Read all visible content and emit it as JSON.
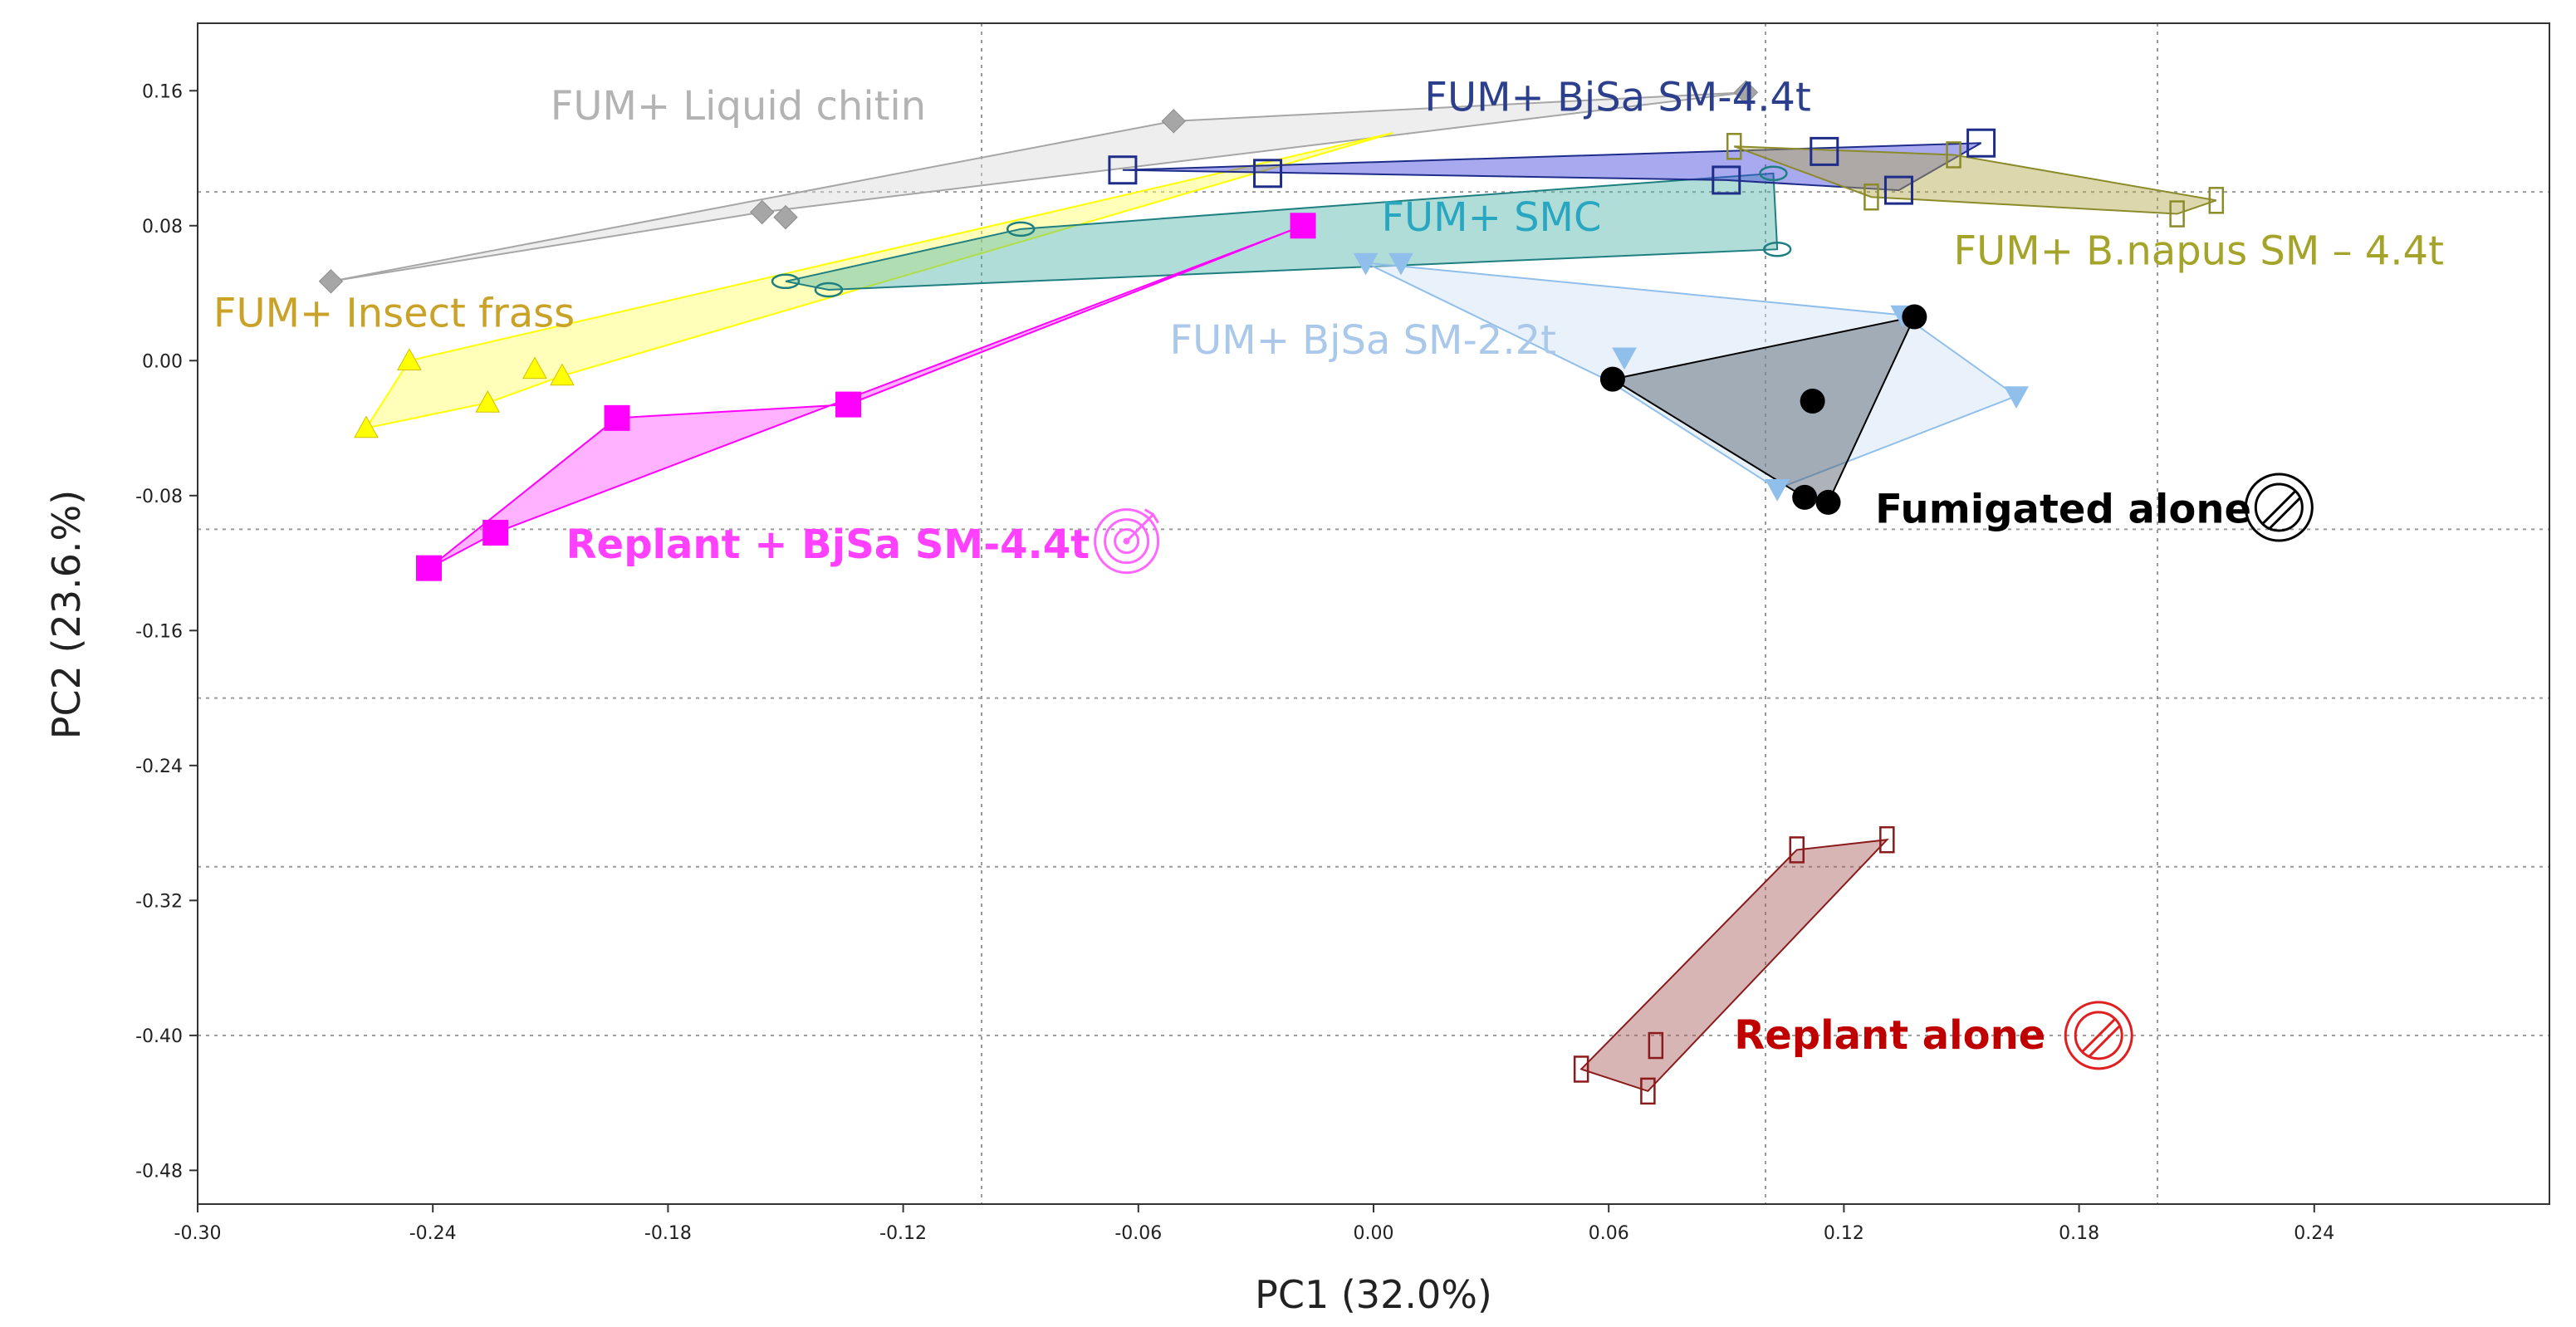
{
  "chart_data": {
    "type": "scatter",
    "title": "",
    "xlabel": "PC1 (32.0%)",
    "ylabel": "PC2 (23.6.%)",
    "xlim": [
      -0.3,
      0.3
    ],
    "ylim": [
      -0.5,
      0.2
    ],
    "xticks": [
      "-0.30",
      "-0.24",
      "-0.18",
      "-0.12",
      "-0.06",
      "0.00",
      "0.06",
      "0.12",
      "0.18",
      "0.24"
    ],
    "xtick_values": [
      -0.3,
      -0.24,
      -0.18,
      -0.12,
      -0.06,
      0.0,
      0.06,
      0.12,
      0.18,
      0.24
    ],
    "yticks": [
      "0.16",
      "0.08",
      "0.00",
      "-0.08",
      "-0.16",
      "-0.24",
      "-0.32",
      "-0.40",
      "-0.48"
    ],
    "ytick_values": [
      0.16,
      0.08,
      0.0,
      -0.08,
      -0.16,
      -0.24,
      -0.32,
      -0.4,
      -0.48
    ],
    "vertical_gridlines": [
      -0.1,
      0.1,
      0.2
    ],
    "horizontal_gridlines": [
      0.1,
      -0.1,
      -0.2,
      -0.3,
      -0.4
    ],
    "series": [
      {
        "name": "FUM+ Liquid chitin",
        "label": "FUM+ Liquid chitin",
        "marker": "diamond",
        "color": "#a6a6a6",
        "fill": "#d9d9d9",
        "label_color": "#b3b3b3",
        "bold": false,
        "label_pos": [
          -0.21,
          0.143
        ],
        "hull": [
          [
            -0.266,
            0.047
          ],
          [
            -0.051,
            0.142
          ],
          [
            0.095,
            0.159
          ],
          [
            -0.156,
            0.088
          ]
        ],
        "points": [
          [
            -0.266,
            0.047
          ],
          [
            -0.156,
            0.088
          ],
          [
            -0.15,
            0.085
          ],
          [
            -0.051,
            0.142
          ],
          [
            0.095,
            0.159
          ]
        ]
      },
      {
        "name": "FUM+ Insect frass",
        "label": "FUM+ Insect frass",
        "marker": "triangle-up",
        "color": "#ffff00",
        "fill": "#ffff66",
        "label_color": "#c9a227",
        "bold": false,
        "label_pos": [
          -0.296,
          0.02
        ],
        "hull": [
          [
            -0.257,
            -0.04
          ],
          [
            -0.246,
            0.0
          ],
          [
            0.005,
            0.135
          ],
          [
            -0.207,
            -0.009
          ],
          [
            -0.226,
            -0.025
          ]
        ],
        "points": [
          [
            -0.257,
            -0.04
          ],
          [
            -0.246,
            0.0
          ],
          [
            -0.226,
            -0.025
          ],
          [
            -0.214,
            -0.005
          ],
          [
            -0.207,
            -0.009
          ]
        ]
      },
      {
        "name": "FUM+ SMC",
        "label": "FUM+ SMC",
        "marker": "ellipse",
        "color": "#1f7f80",
        "fill": "#4fb3a9",
        "label_color": "#2aa7c0",
        "bold": false,
        "label_pos": [
          0.002,
          0.077
        ],
        "hull": [
          [
            -0.15,
            0.047
          ],
          [
            -0.09,
            0.078
          ],
          [
            0.102,
            0.111
          ],
          [
            0.103,
            0.066
          ],
          [
            -0.139,
            0.042
          ]
        ],
        "points": [
          [
            -0.15,
            0.047
          ],
          [
            -0.139,
            0.042
          ],
          [
            -0.09,
            0.078
          ],
          [
            0.102,
            0.111
          ],
          [
            0.103,
            0.066
          ]
        ]
      },
      {
        "name": "FUM+ BjSa SM-4.4t",
        "label": "FUM+ BjSa SM-4.4t",
        "marker": "square-open",
        "color": "#1f2d8a",
        "fill": "#4040dd",
        "label_color": "#2b3f8c",
        "bold": false,
        "label_pos": [
          0.013,
          0.148
        ],
        "hull": [
          [
            -0.064,
            0.113
          ],
          [
            0.155,
            0.129
          ],
          [
            0.134,
            0.101
          ],
          [
            0.09,
            0.107
          ]
        ],
        "points": [
          [
            -0.064,
            0.113
          ],
          [
            -0.027,
            0.111
          ],
          [
            0.09,
            0.107
          ],
          [
            0.115,
            0.124
          ],
          [
            0.134,
            0.101
          ],
          [
            0.155,
            0.129
          ]
        ]
      },
      {
        "name": "FUM+ B.napus SM – 4.4t",
        "label": "FUM+ B.napus SM – 4.4t",
        "marker": "rect-open",
        "color": "#8b8b2a",
        "fill": "#b3a64b",
        "label_color": "#a4a42a",
        "bold": false,
        "label_pos": [
          0.148,
          0.057
        ],
        "hull": [
          [
            0.092,
            0.127
          ],
          [
            0.148,
            0.122
          ],
          [
            0.215,
            0.095
          ],
          [
            0.205,
            0.087
          ],
          [
            0.127,
            0.097
          ]
        ],
        "points": [
          [
            0.092,
            0.127
          ],
          [
            0.148,
            0.122
          ],
          [
            0.215,
            0.095
          ],
          [
            0.205,
            0.087
          ],
          [
            0.127,
            0.097
          ]
        ]
      },
      {
        "name": "FUM+ BjSa SM-2.2t",
        "label": "FUM+ BjSa SM-2.2t",
        "marker": "triangle-down",
        "color": "#8fbfea",
        "fill": "#cfe2f6",
        "label_color": "#a9c8ea",
        "bold": false,
        "label_pos": [
          -0.052,
          0.004
        ],
        "hull": [
          [
            -0.002,
            0.058
          ],
          [
            0.135,
            0.027
          ],
          [
            0.164,
            -0.021
          ],
          [
            0.103,
            -0.076
          ],
          [
            0.06,
            -0.012
          ]
        ],
        "points": [
          [
            -0.002,
            0.058
          ],
          [
            0.007,
            0.058
          ],
          [
            0.064,
            0.002
          ],
          [
            0.135,
            0.027
          ],
          [
            0.164,
            -0.021
          ],
          [
            0.103,
            -0.076
          ]
        ]
      },
      {
        "name": "Fumigated alone",
        "label": "Fumigated alone",
        "marker": "circle-filled",
        "color": "#000000",
        "fill": "#4a5664",
        "label_color": "#000000",
        "bold": true,
        "label_pos": [
          0.128,
          -0.096
        ],
        "hull": [
          [
            0.061,
            -0.011
          ],
          [
            0.138,
            0.026
          ],
          [
            0.116,
            -0.084
          ],
          [
            0.11,
            -0.081
          ]
        ],
        "points": [
          [
            0.061,
            -0.011
          ],
          [
            0.138,
            0.026
          ],
          [
            0.112,
            -0.024
          ],
          [
            0.11,
            -0.081
          ],
          [
            0.116,
            -0.084
          ]
        ]
      },
      {
        "name": "Replant + BjSa SM-4.4t",
        "label": "Replant + BjSa SM-4.4t",
        "marker": "square-filled",
        "color": "#ff00ff",
        "fill": "#ff55ff",
        "label_color": "#ff40ff",
        "bold": true,
        "label_pos": [
          -0.206,
          -0.117
        ],
        "hull": [
          [
            -0.241,
            -0.123
          ],
          [
            -0.193,
            -0.034
          ],
          [
            -0.134,
            -0.026
          ],
          [
            -0.018,
            0.08
          ],
          [
            -0.224,
            -0.102
          ]
        ],
        "points": [
          [
            -0.241,
            -0.123
          ],
          [
            -0.224,
            -0.102
          ],
          [
            -0.193,
            -0.034
          ],
          [
            -0.134,
            -0.026
          ],
          [
            -0.018,
            0.08
          ]
        ]
      },
      {
        "name": "Replant alone",
        "label": "Replant alone",
        "marker": "rect-open",
        "color": "#8b1a1a",
        "fill": "#a85a5a",
        "label_color": "#c00000",
        "bold": true,
        "label_pos": [
          0.092,
          -0.408
        ],
        "hull": [
          [
            0.053,
            -0.42
          ],
          [
            0.108,
            -0.29
          ],
          [
            0.131,
            -0.284
          ],
          [
            0.07,
            -0.433
          ]
        ],
        "points": [
          [
            0.053,
            -0.42
          ],
          [
            0.07,
            -0.433
          ],
          [
            0.072,
            -0.406
          ],
          [
            0.108,
            -0.29
          ],
          [
            0.131,
            -0.284
          ]
        ]
      }
    ],
    "label_icons": [
      {
        "name": "prohibited-icon-fumigated",
        "kind": "prohibited",
        "color": "#000000",
        "x": 0.231,
        "y": -0.087
      },
      {
        "name": "target-icon-replant-bjsa",
        "kind": "target",
        "color": "#ff66ff",
        "x": -0.063,
        "y": -0.107
      },
      {
        "name": "prohibited-icon-replant",
        "kind": "prohibited",
        "color": "#e02020",
        "x": 0.185,
        "y": -0.4
      }
    ]
  }
}
